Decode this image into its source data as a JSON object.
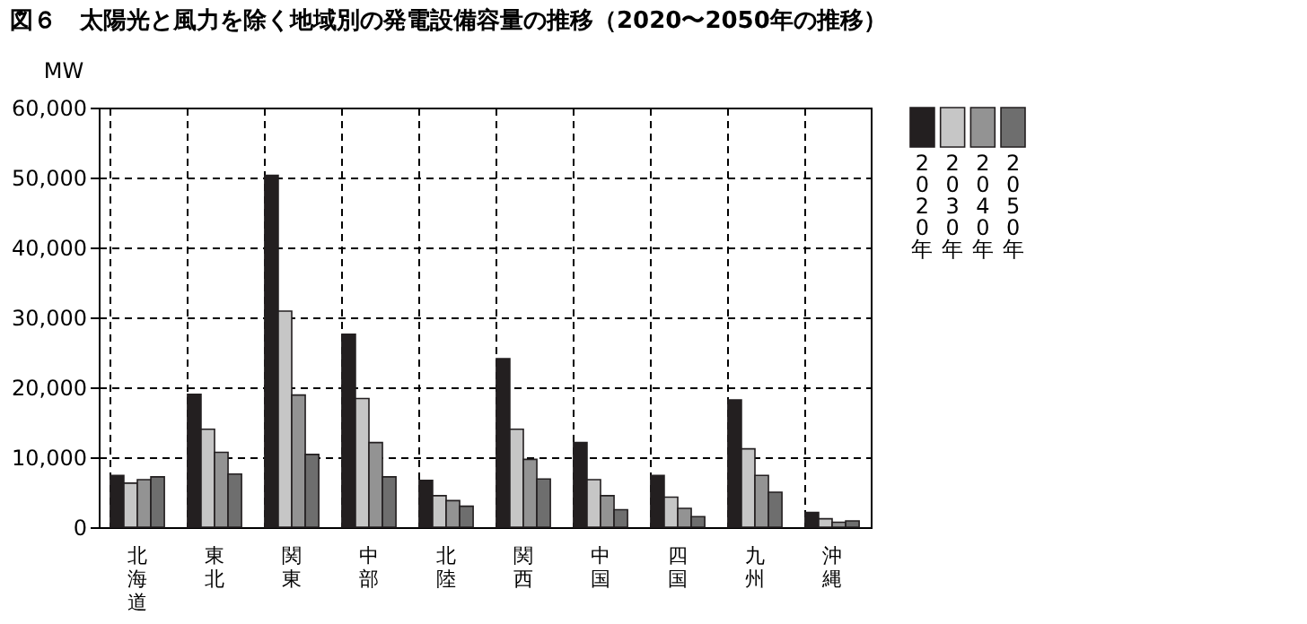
{
  "chart_data": {
    "type": "bar",
    "title": "図６　太陽光と風力を除く地域別の発電設備容量の推移（2020〜2050年の推移）",
    "ylabel": "MW",
    "categories": [
      "北海道",
      "東北",
      "関東",
      "中部",
      "北陸",
      "関西",
      "中国",
      "四国",
      "九州",
      "沖縄"
    ],
    "series": [
      {
        "name": "2020年",
        "color": "#231f20",
        "values": [
          7400,
          19000,
          50300,
          27600,
          6700,
          24100,
          12100,
          7400,
          18200,
          2100
        ]
      },
      {
        "name": "2030年",
        "color": "#c6c6c6",
        "values": [
          6300,
          14000,
          30900,
          18400,
          4500,
          14000,
          6800,
          4300,
          11200,
          1200
        ]
      },
      {
        "name": "2040年",
        "color": "#939393",
        "values": [
          6800,
          10700,
          18900,
          12100,
          3800,
          9700,
          4500,
          2700,
          7400,
          700
        ]
      },
      {
        "name": "2050年",
        "color": "#6e6e6e",
        "values": [
          7200,
          7600,
          10400,
          7200,
          3000,
          6900,
          2500,
          1500,
          5000,
          900
        ]
      }
    ],
    "ylim": [
      0,
      60000
    ],
    "yticks": [
      {
        "value": 0,
        "label": "0"
      },
      {
        "value": 10000,
        "label": "10,000"
      },
      {
        "value": 20000,
        "label": "20,000"
      },
      {
        "value": 30000,
        "label": "30,000"
      },
      {
        "value": 40000,
        "label": "40,000"
      },
      {
        "value": 50000,
        "label": "50,000"
      },
      {
        "value": 60000,
        "label": "60,000"
      }
    ],
    "grid": true,
    "legend": "right top"
  }
}
